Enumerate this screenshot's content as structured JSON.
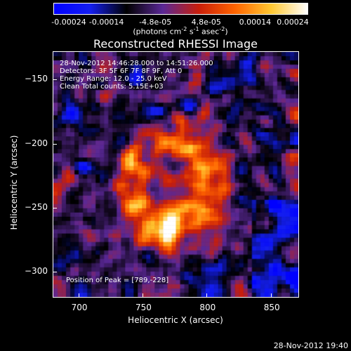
{
  "colorbar": {
    "gradient": [
      "#0000ff",
      "#141ef0",
      "#000000",
      "#5a2896",
      "#c81e0a",
      "#ff6400",
      "#ffc832",
      "#ffffff"
    ],
    "ticks": [
      {
        "label": "-0.00024",
        "pos": 0.0
      },
      {
        "label": "-0.00014",
        "pos": 0.2083
      },
      {
        "label": "-4.8e-05",
        "pos": 0.4
      },
      {
        "label": "4.8e-05",
        "pos": 0.6
      },
      {
        "label": "0.00014",
        "pos": 0.7917
      },
      {
        "label": "0.00024",
        "pos": 1.0
      }
    ],
    "units_main": "(photons cm",
    "units_exp1": "-2",
    "units_mid1": " s",
    "units_exp2": "-1",
    "units_mid2": " asec",
    "units_exp3": "-2",
    "units_end": ")"
  },
  "plot": {
    "title": "Reconstructed RHESSI Image",
    "annotations": {
      "time": "28-Nov-2012 14:46:28.000 to 14:51:26.000",
      "detectors": "Detectors: 3F 5F 6F 7F 8F 9F, Att 0",
      "energy": "Energy Range: 12.0 - 25.0 keV",
      "method": "Clean     Total counts: 5.15E+03",
      "peak": "Position of Peak = [789,-228]"
    },
    "xlabel": "Heliocentric X (arcsec)",
    "ylabel": "Heliocentric Y (arcsec)",
    "xrange": [
      680,
      872
    ],
    "yrange": [
      -320,
      -128
    ],
    "xticks": [
      700,
      750,
      800,
      850
    ],
    "yticks": [
      -150,
      -200,
      -250,
      -300
    ]
  },
  "footer": {
    "timestamp": "28-Nov-2012 19:40"
  }
}
